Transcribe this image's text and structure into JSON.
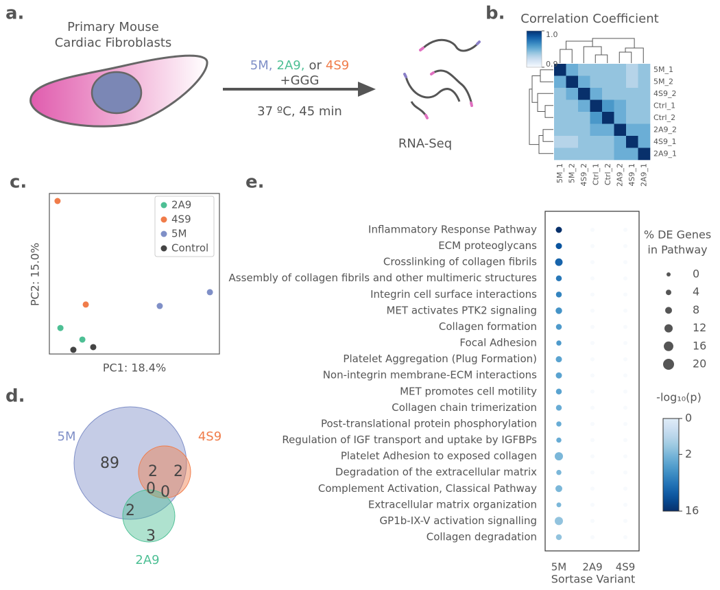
{
  "panel_labels": [
    "a.",
    "b.",
    "c.",
    "d.",
    "e."
  ],
  "diagram": {
    "cell_label": [
      "Primary Mouse",
      "Cardiac Fibroblasts"
    ],
    "treatment": [
      {
        "text": "5M,",
        "color": "#7f8fc7"
      },
      {
        "text": "2A9,",
        "color": "#4dbf94"
      },
      {
        "text": "or",
        "color": "#555555"
      },
      {
        "text": "4S9",
        "color": "#f07c4a"
      }
    ],
    "reagent": "+GGG",
    "conditions": "37 ºC, 45 min",
    "output": "RNA-Seq"
  },
  "chart_data": [
    {
      "type": "heatmap",
      "title": "Correlation Coefficient",
      "rows": [
        "5M_1",
        "5M_2",
        "4S9_2",
        "Ctrl_1",
        "Ctrl_2",
        "2A9_2",
        "4S9_1",
        "2A9_1"
      ],
      "columns": [
        "5M_1",
        "5M_2",
        "4S9_2",
        "Ctrl_1",
        "Ctrl_2",
        "2A9_2",
        "4S9_1",
        "2A9_1"
      ],
      "values": [
        [
          1.0,
          0.95,
          0.94,
          0.94,
          0.94,
          0.94,
          0.93,
          0.94
        ],
        [
          0.95,
          1.0,
          0.95,
          0.94,
          0.94,
          0.94,
          0.93,
          0.94
        ],
        [
          0.94,
          0.95,
          1.0,
          0.95,
          0.94,
          0.94,
          0.94,
          0.94
        ],
        [
          0.94,
          0.94,
          0.95,
          1.0,
          0.96,
          0.95,
          0.94,
          0.94
        ],
        [
          0.94,
          0.94,
          0.94,
          0.96,
          1.0,
          0.95,
          0.94,
          0.94
        ],
        [
          0.94,
          0.94,
          0.94,
          0.95,
          0.95,
          1.0,
          0.95,
          0.95
        ],
        [
          0.93,
          0.93,
          0.94,
          0.94,
          0.94,
          0.95,
          1.0,
          0.95
        ],
        [
          0.94,
          0.94,
          0.94,
          0.94,
          0.94,
          0.95,
          0.95,
          1.0
        ]
      ],
      "colorbar_lim": [
        0.9,
        1.0
      ],
      "colorbar_ticks": [
        0.9,
        {
          "value": 1,
          "label": "1.0"
        }
      ]
    },
    {
      "type": "scatter",
      "xlabel": "PC1: 18.4%",
      "ylabel": "PC2: 15.0%",
      "xlim": [
        0,
        10
      ],
      "ylim": [
        0,
        10
      ],
      "series": [
        {
          "name": "2A9",
          "color": "#4dbf94",
          "x": [
            0.65,
            1.94
          ],
          "y": [
            1.62,
            0.9
          ]
        },
        {
          "name": "4S9",
          "color": "#f07c4a",
          "x": [
            0.48,
            2.14
          ],
          "y": [
            9.53,
            3.08
          ]
        },
        {
          "name": "5M",
          "color": "#7f8fc7",
          "x": [
            6.49,
            9.44
          ],
          "y": [
            2.99,
            3.85
          ]
        },
        {
          "name": "Control",
          "color": "#444444",
          "x": [
            1.41,
            2.58
          ],
          "y": [
            0.26,
            0.43
          ]
        }
      ]
    },
    {
      "type": "venn",
      "sets": [
        {
          "name": "5M",
          "color": "#7f8fc7"
        },
        {
          "name": "4S9",
          "color": "#f07c4a"
        },
        {
          "name": "2A9",
          "color": "#4dbf94"
        }
      ],
      "regions": [
        {
          "sets": [
            "5M"
          ],
          "value": 89
        },
        {
          "sets": [
            "5M",
            "4S9"
          ],
          "value": 2
        },
        {
          "sets": [
            "4S9"
          ],
          "value": 2
        },
        {
          "sets": [
            "5M",
            "2A9"
          ],
          "value": 2
        },
        {
          "sets": [
            "5M",
            "4S9",
            "2A9"
          ],
          "value": 0
        },
        {
          "sets": [
            "4S9",
            "2A9"
          ],
          "value": 0
        },
        {
          "sets": [
            "2A9"
          ],
          "value": 3
        }
      ]
    },
    {
      "type": "dot",
      "xlabel": "Sortase Variant",
      "categories": [
        "Inflammatory Response Pathway",
        "ECM proteoglycans",
        "Crosslinking of collagen fibrils",
        "Assembly of collagen fibrils and other multimeric structures",
        "Integrin cell surface interactions",
        "MET activates PTK2 signaling",
        "Collagen formation",
        "Focal Adhesion",
        "Platelet Aggregation (Plug Formation)",
        "Non-integrin membrane-ECM interactions",
        "MET promotes cell motility",
        "Collagen chain trimerization",
        "Post-translational protein phosphorylation",
        "Regulation of IGF transport and uptake by IGFBPs",
        "Platelet Adhesion to exposed collagen",
        "Degradation of the extracellular matrix",
        "Complement Activation, Classical Pathway",
        "Extracellular matrix organization",
        "GP1b-IX-V activation signalling",
        "Collagen degradation"
      ],
      "series": [
        {
          "name": "5M",
          "values": [
            6,
            6,
            10,
            5,
            5,
            7,
            5,
            3,
            6,
            6,
            5,
            5,
            3,
            3,
            12,
            3,
            8,
            2,
            12,
            5
          ],
          "color_values": [
            16,
            10,
            8,
            6,
            5,
            4,
            3.5,
            3.5,
            3,
            3,
            3,
            2.5,
            2.5,
            2.5,
            2,
            2,
            2,
            2,
            1.5,
            1.5
          ]
        },
        {
          "name": "2A9",
          "values": [
            0,
            0,
            0,
            0,
            0,
            0,
            0,
            0,
            0,
            0,
            0,
            0,
            0,
            0,
            0,
            0,
            0,
            0,
            0,
            0
          ],
          "color_values": [
            0,
            0,
            0,
            0,
            0,
            0,
            0,
            0,
            0,
            0,
            0,
            0,
            0,
            0,
            0,
            0,
            0,
            0,
            0,
            0
          ]
        },
        {
          "name": "4S9",
          "values": [
            0,
            0,
            0,
            0,
            0,
            0,
            0,
            0,
            0,
            0,
            0,
            0,
            0,
            0,
            0,
            0,
            0,
            0,
            0,
            0
          ],
          "color_values": [
            0,
            0,
            0,
            0,
            0,
            0,
            0,
            0,
            0,
            0,
            0,
            0,
            0,
            0,
            0,
            0,
            0,
            0,
            0,
            0
          ]
        }
      ],
      "size_title": [
        "% DE Genes",
        "in Pathway"
      ],
      "size_ticks": [
        0,
        4,
        8,
        12,
        16,
        20
      ],
      "color_title": "-log₁₀(p)",
      "color_lim": [
        0,
        16
      ],
      "color_ticks": [
        0,
        2,
        16
      ]
    }
  ]
}
